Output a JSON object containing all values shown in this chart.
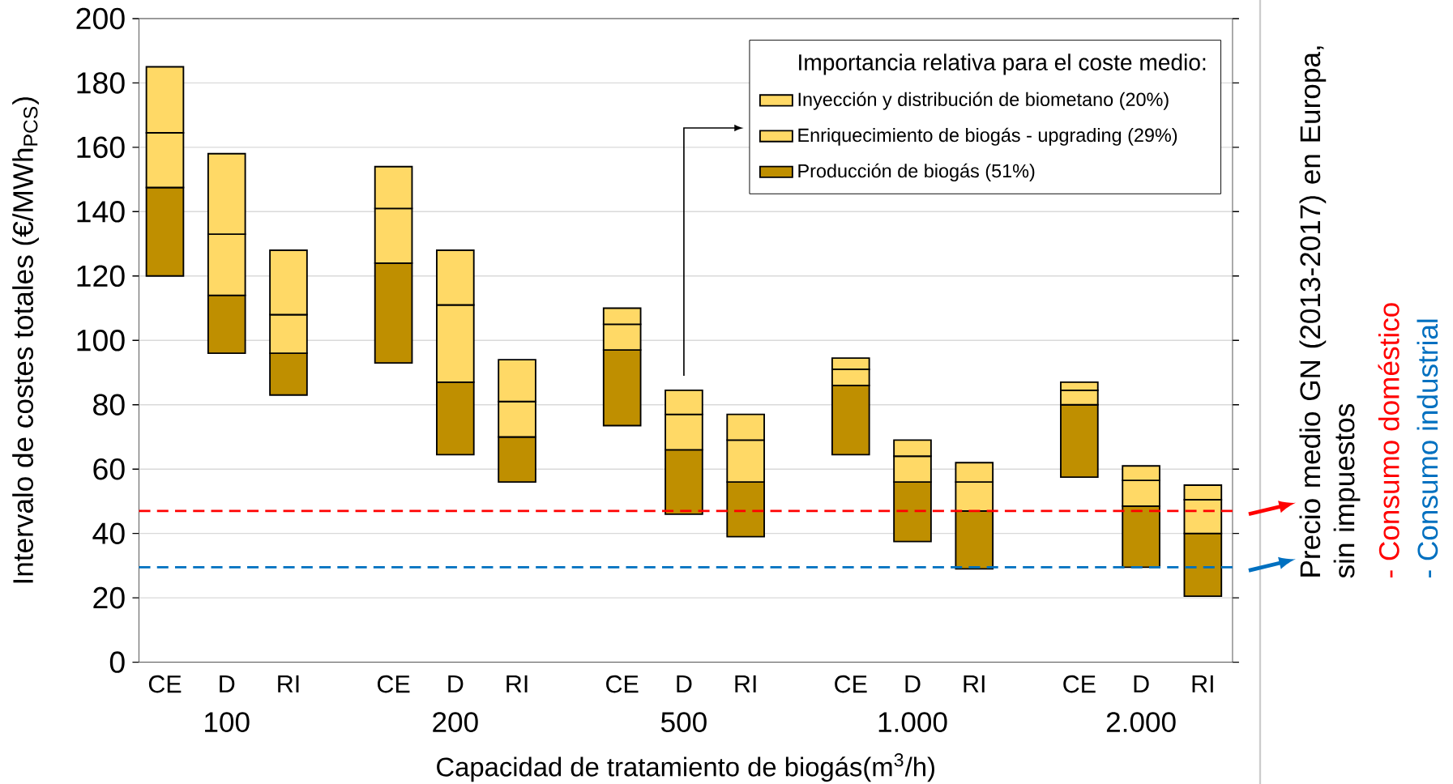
{
  "chart_data": {
    "type": "bar",
    "ylabel": "Intervalo de costes totales (€/MWh$_{PCS}$)",
    "xlabel": "Capacidad de tratamiento de biogás(m$^{3}$/h)",
    "legend_title": "Importancia relativa para el coste medio:",
    "categories": [
      "CE",
      "D",
      "RI",
      "CE",
      "D",
      "RI",
      "CE",
      "D",
      "RI",
      "CE",
      "D",
      "RI",
      "CE",
      "D",
      "RI"
    ],
    "series": [
      {
        "name": "Producción de biogás (51%)",
        "color": "#bf8f00",
        "base": [
          120,
          96,
          83,
          93,
          64.5,
          56,
          73.5,
          46,
          39,
          64.5,
          37.5,
          29,
          57.5,
          29.5,
          20.5
        ],
        "values": [
          27.5,
          18,
          13,
          31,
          22.5,
          14,
          23.5,
          20,
          17,
          21.5,
          18.5,
          18,
          22.5,
          19,
          19.5
        ]
      },
      {
        "name": "Enriquecimiento de biogás - upgrading (29%)",
        "color": "#ffd966",
        "base": [
          147.5,
          114,
          96,
          124,
          87,
          70,
          97,
          66,
          56,
          86,
          56,
          47,
          80,
          48.5,
          40
        ],
        "values": [
          17,
          19,
          12,
          17,
          24,
          11,
          8,
          11,
          13,
          5,
          8,
          9,
          4.5,
          8,
          10.5
        ]
      },
      {
        "name": "Inyección y distribución de biometano (20%)",
        "color": "#ffd966",
        "base": [
          164.5,
          133,
          108,
          141,
          111,
          81,
          105,
          77,
          69,
          91,
          64,
          56,
          84.5,
          56.5,
          50.5
        ],
        "values": [
          20.5,
          25,
          20,
          13,
          17,
          13,
          5,
          7.5,
          8,
          3.5,
          5,
          6,
          2.5,
          4.5,
          4.5
        ]
      }
    ],
    "ylim": [
      0,
      200
    ],
    "yticks": [
      0,
      20,
      40,
      60,
      80,
      100,
      120,
      140,
      160,
      180,
      200
    ],
    "grid": "y",
    "legend": "top right",
    "ref_lines": [
      {
        "axis": "y",
        "value": 47,
        "label": "- Consumo doméstico",
        "color": "#ff0000",
        "line_style": "dashed"
      },
      {
        "axis": "y",
        "value": 29.5,
        "label": "- Consumo industrial",
        "color": "#0070c0",
        "line_style": "dashed"
      }
    ],
    "annotations": [
      "Precio medio GN (2013-2017) en Europa, sin impuestos",
      "100",
      "200",
      "500",
      "1.000",
      "2.000"
    ]
  }
}
